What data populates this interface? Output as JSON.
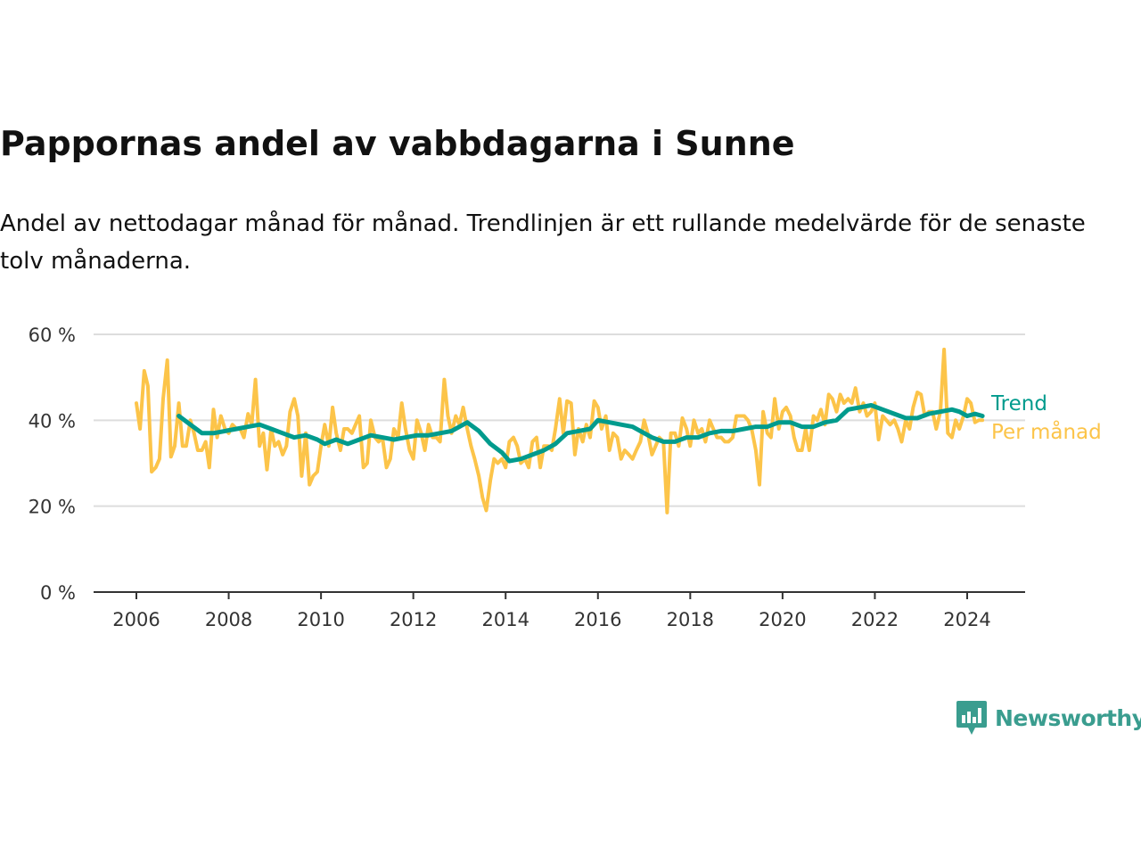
{
  "title": "Pappornas andel av vabbdagarna i Sunne",
  "subtitle": "Andel av nettodagar månad för månad. Trendlinjen är ett rullande medelvärde för de senaste tolv månaderna.",
  "logo": {
    "text": "Newsworthy",
    "icon": "newsworthy-logo-icon"
  },
  "colors": {
    "monthly": "#fcc449",
    "trend": "#009b8d",
    "grid": "#dddddd",
    "axis": "#333333"
  },
  "chart_data": {
    "type": "line",
    "title": "Pappornas andel av vabbdagarna i Sunne",
    "xlabel": "",
    "ylabel": "",
    "xlim": [
      2006,
      2024.4
    ],
    "ylim": [
      0,
      60
    ],
    "y_ticks": [
      0,
      20,
      40,
      60
    ],
    "y_tick_labels": [
      "0 %",
      "20 %",
      "40 %",
      "60 %"
    ],
    "x_ticks": [
      2006,
      2008,
      2010,
      2012,
      2014,
      2016,
      2018,
      2020,
      2022,
      2024
    ],
    "x_tick_labels": [
      "2006",
      "2008",
      "2010",
      "2012",
      "2014",
      "2016",
      "2018",
      "2020",
      "2022",
      "2024"
    ],
    "grid": "horizontal",
    "legend": "right, at line ends",
    "series": [
      {
        "name": "Per månad",
        "color": "#fcc449",
        "points": [
          [
            2006.0,
            44
          ],
          [
            2006.08,
            38
          ],
          [
            2006.17,
            51.5
          ],
          [
            2006.25,
            48
          ],
          [
            2006.33,
            28
          ],
          [
            2006.42,
            29
          ],
          [
            2006.5,
            31
          ],
          [
            2006.58,
            45
          ],
          [
            2006.67,
            54
          ],
          [
            2006.75,
            31.5
          ],
          [
            2006.83,
            34
          ],
          [
            2006.92,
            44
          ],
          [
            2007.0,
            34
          ],
          [
            2007.08,
            34
          ],
          [
            2007.17,
            40
          ],
          [
            2007.25,
            37
          ],
          [
            2007.33,
            33
          ],
          [
            2007.42,
            33
          ],
          [
            2007.5,
            35
          ],
          [
            2007.58,
            29
          ],
          [
            2007.67,
            42.5
          ],
          [
            2007.75,
            36
          ],
          [
            2007.83,
            41
          ],
          [
            2007.92,
            38
          ],
          [
            2008.0,
            37
          ],
          [
            2008.08,
            39
          ],
          [
            2008.17,
            38
          ],
          [
            2008.25,
            38
          ],
          [
            2008.33,
            36
          ],
          [
            2008.42,
            41.5
          ],
          [
            2008.5,
            39
          ],
          [
            2008.58,
            49.5
          ],
          [
            2008.67,
            34
          ],
          [
            2008.75,
            37
          ],
          [
            2008.83,
            28.5
          ],
          [
            2008.92,
            38
          ],
          [
            2009.0,
            34
          ],
          [
            2009.08,
            35
          ],
          [
            2009.17,
            32
          ],
          [
            2009.25,
            34
          ],
          [
            2009.33,
            42
          ],
          [
            2009.42,
            45
          ],
          [
            2009.5,
            41
          ],
          [
            2009.58,
            27
          ],
          [
            2009.67,
            37
          ],
          [
            2009.75,
            25
          ],
          [
            2009.83,
            27
          ],
          [
            2009.92,
            28
          ],
          [
            2010.0,
            34
          ],
          [
            2010.08,
            39
          ],
          [
            2010.17,
            34
          ],
          [
            2010.25,
            43
          ],
          [
            2010.33,
            37
          ],
          [
            2010.42,
            33
          ],
          [
            2010.5,
            38
          ],
          [
            2010.58,
            38
          ],
          [
            2010.67,
            37
          ],
          [
            2010.75,
            39
          ],
          [
            2010.83,
            41
          ],
          [
            2010.92,
            29
          ],
          [
            2011.0,
            30
          ],
          [
            2011.08,
            40
          ],
          [
            2011.17,
            36
          ],
          [
            2011.25,
            35
          ],
          [
            2011.33,
            36
          ],
          [
            2011.42,
            29
          ],
          [
            2011.5,
            31
          ],
          [
            2011.58,
            38
          ],
          [
            2011.67,
            36
          ],
          [
            2011.75,
            44
          ],
          [
            2011.83,
            38
          ],
          [
            2011.92,
            33
          ],
          [
            2012.0,
            31
          ],
          [
            2012.08,
            40
          ],
          [
            2012.17,
            37
          ],
          [
            2012.25,
            33
          ],
          [
            2012.33,
            39
          ],
          [
            2012.42,
            36
          ],
          [
            2012.5,
            36
          ],
          [
            2012.58,
            35
          ],
          [
            2012.67,
            49.5
          ],
          [
            2012.75,
            41
          ],
          [
            2012.83,
            37
          ],
          [
            2012.92,
            41
          ],
          [
            2013.0,
            39
          ],
          [
            2013.08,
            43
          ],
          [
            2013.17,
            38
          ],
          [
            2013.25,
            34
          ],
          [
            2013.33,
            31
          ],
          [
            2013.42,
            27
          ],
          [
            2013.5,
            22
          ],
          [
            2013.58,
            19
          ],
          [
            2013.67,
            26
          ],
          [
            2013.75,
            31
          ],
          [
            2013.83,
            30
          ],
          [
            2013.92,
            31
          ],
          [
            2014.0,
            29
          ],
          [
            2014.08,
            35
          ],
          [
            2014.17,
            36
          ],
          [
            2014.25,
            34
          ],
          [
            2014.33,
            30
          ],
          [
            2014.42,
            31
          ],
          [
            2014.5,
            29
          ],
          [
            2014.58,
            35
          ],
          [
            2014.67,
            36
          ],
          [
            2014.75,
            29
          ],
          [
            2014.83,
            34
          ],
          [
            2014.92,
            34
          ],
          [
            2015.0,
            33
          ],
          [
            2015.08,
            38
          ],
          [
            2015.17,
            45
          ],
          [
            2015.25,
            37
          ],
          [
            2015.33,
            44.5
          ],
          [
            2015.42,
            44
          ],
          [
            2015.5,
            32
          ],
          [
            2015.58,
            38
          ],
          [
            2015.67,
            35
          ],
          [
            2015.75,
            39
          ],
          [
            2015.83,
            36
          ],
          [
            2015.92,
            44.5
          ],
          [
            2016.0,
            43
          ],
          [
            2016.08,
            38
          ],
          [
            2016.17,
            41
          ],
          [
            2016.25,
            33
          ],
          [
            2016.33,
            37
          ],
          [
            2016.42,
            36
          ],
          [
            2016.5,
            31
          ],
          [
            2016.58,
            33
          ],
          [
            2016.67,
            32
          ],
          [
            2016.75,
            31
          ],
          [
            2016.83,
            33
          ],
          [
            2016.92,
            35
          ],
          [
            2017.0,
            40
          ],
          [
            2017.08,
            37
          ],
          [
            2017.17,
            32
          ],
          [
            2017.25,
            34
          ],
          [
            2017.33,
            36
          ],
          [
            2017.42,
            35
          ],
          [
            2017.5,
            18.5
          ],
          [
            2017.58,
            37
          ],
          [
            2017.67,
            37
          ],
          [
            2017.75,
            34
          ],
          [
            2017.83,
            40.5
          ],
          [
            2017.92,
            38
          ],
          [
            2018.0,
            34
          ],
          [
            2018.08,
            40
          ],
          [
            2018.17,
            37
          ],
          [
            2018.25,
            38
          ],
          [
            2018.33,
            35
          ],
          [
            2018.42,
            40
          ],
          [
            2018.5,
            38
          ],
          [
            2018.58,
            36
          ],
          [
            2018.67,
            36
          ],
          [
            2018.75,
            35
          ],
          [
            2018.83,
            35
          ],
          [
            2018.92,
            36
          ],
          [
            2019.0,
            41
          ],
          [
            2019.08,
            41
          ],
          [
            2019.17,
            41
          ],
          [
            2019.25,
            40
          ],
          [
            2019.33,
            38
          ],
          [
            2019.42,
            33
          ],
          [
            2019.5,
            25
          ],
          [
            2019.58,
            42
          ],
          [
            2019.67,
            37
          ],
          [
            2019.75,
            36
          ],
          [
            2019.83,
            45
          ],
          [
            2019.92,
            38
          ],
          [
            2020.0,
            42
          ],
          [
            2020.08,
            43
          ],
          [
            2020.17,
            41
          ],
          [
            2020.25,
            36
          ],
          [
            2020.33,
            33
          ],
          [
            2020.42,
            33
          ],
          [
            2020.5,
            38
          ],
          [
            2020.58,
            33
          ],
          [
            2020.67,
            41
          ],
          [
            2020.75,
            40
          ],
          [
            2020.83,
            42.5
          ],
          [
            2020.92,
            39
          ],
          [
            2021.0,
            46
          ],
          [
            2021.08,
            45
          ],
          [
            2021.17,
            42
          ],
          [
            2021.25,
            46
          ],
          [
            2021.33,
            44
          ],
          [
            2021.42,
            45
          ],
          [
            2021.5,
            44
          ],
          [
            2021.58,
            47.5
          ],
          [
            2021.67,
            42
          ],
          [
            2021.75,
            44
          ],
          [
            2021.83,
            41
          ],
          [
            2021.92,
            42
          ],
          [
            2022.0,
            44
          ],
          [
            2022.08,
            35.5
          ],
          [
            2022.17,
            41
          ],
          [
            2022.25,
            40
          ],
          [
            2022.33,
            39
          ],
          [
            2022.42,
            40
          ],
          [
            2022.5,
            38
          ],
          [
            2022.58,
            35
          ],
          [
            2022.67,
            40
          ],
          [
            2022.75,
            38
          ],
          [
            2022.83,
            43
          ],
          [
            2022.92,
            46.5
          ],
          [
            2023.0,
            46
          ],
          [
            2023.08,
            41
          ],
          [
            2023.17,
            42
          ],
          [
            2023.25,
            42
          ],
          [
            2023.33,
            38
          ],
          [
            2023.42,
            42
          ],
          [
            2023.5,
            56.5
          ],
          [
            2023.58,
            37
          ],
          [
            2023.67,
            36
          ],
          [
            2023.75,
            40
          ],
          [
            2023.83,
            38
          ],
          [
            2023.92,
            41
          ],
          [
            2024.0,
            45
          ],
          [
            2024.08,
            44
          ],
          [
            2024.17,
            39.5
          ],
          [
            2024.25,
            40
          ],
          [
            2024.33,
            40
          ]
        ]
      },
      {
        "name": "Trend",
        "color": "#009b8d",
        "points": [
          [
            2006.92,
            41
          ],
          [
            2007.17,
            39
          ],
          [
            2007.42,
            37
          ],
          [
            2007.67,
            37
          ],
          [
            2007.92,
            37.5
          ],
          [
            2008.17,
            38
          ],
          [
            2008.42,
            38.5
          ],
          [
            2008.67,
            39
          ],
          [
            2008.92,
            38
          ],
          [
            2009.17,
            37
          ],
          [
            2009.42,
            36
          ],
          [
            2009.67,
            36.5
          ],
          [
            2009.92,
            35.5
          ],
          [
            2010.08,
            34.5
          ],
          [
            2010.33,
            35.5
          ],
          [
            2010.58,
            34.5
          ],
          [
            2010.83,
            35.5
          ],
          [
            2011.08,
            36.5
          ],
          [
            2011.33,
            36
          ],
          [
            2011.58,
            35.5
          ],
          [
            2011.83,
            36
          ],
          [
            2012.08,
            36.5
          ],
          [
            2012.33,
            36.5
          ],
          [
            2012.58,
            37
          ],
          [
            2012.83,
            37.5
          ],
          [
            2013.0,
            38.5
          ],
          [
            2013.17,
            39.5
          ],
          [
            2013.42,
            37.5
          ],
          [
            2013.67,
            34.5
          ],
          [
            2013.92,
            32.5
          ],
          [
            2014.08,
            30.5
          ],
          [
            2014.33,
            31
          ],
          [
            2014.58,
            32
          ],
          [
            2014.83,
            33
          ],
          [
            2015.08,
            34.5
          ],
          [
            2015.33,
            37
          ],
          [
            2015.58,
            37.5
          ],
          [
            2015.83,
            38
          ],
          [
            2016.0,
            40
          ],
          [
            2016.25,
            39.5
          ],
          [
            2016.5,
            39
          ],
          [
            2016.75,
            38.5
          ],
          [
            2016.92,
            37.5
          ],
          [
            2017.17,
            36
          ],
          [
            2017.42,
            35
          ],
          [
            2017.67,
            35
          ],
          [
            2017.92,
            36
          ],
          [
            2018.17,
            36
          ],
          [
            2018.42,
            37
          ],
          [
            2018.67,
            37.5
          ],
          [
            2018.92,
            37.5
          ],
          [
            2019.17,
            38
          ],
          [
            2019.42,
            38.5
          ],
          [
            2019.67,
            38.5
          ],
          [
            2019.92,
            39.5
          ],
          [
            2020.17,
            39.5
          ],
          [
            2020.42,
            38.5
          ],
          [
            2020.67,
            38.5
          ],
          [
            2020.92,
            39.5
          ],
          [
            2021.17,
            40
          ],
          [
            2021.42,
            42.5
          ],
          [
            2021.67,
            43
          ],
          [
            2021.92,
            43.5
          ],
          [
            2022.17,
            42.5
          ],
          [
            2022.42,
            41.5
          ],
          [
            2022.67,
            40.5
          ],
          [
            2022.92,
            40.5
          ],
          [
            2023.17,
            41.5
          ],
          [
            2023.42,
            42
          ],
          [
            2023.67,
            42.5
          ],
          [
            2023.83,
            42
          ],
          [
            2024.0,
            41
          ],
          [
            2024.17,
            41.5
          ],
          [
            2024.33,
            41
          ]
        ]
      }
    ]
  }
}
